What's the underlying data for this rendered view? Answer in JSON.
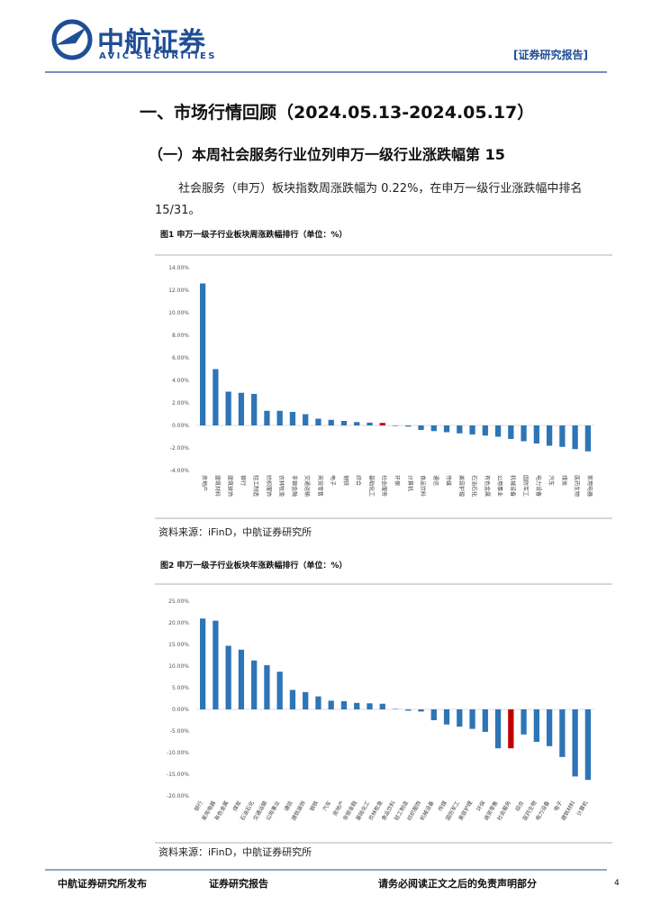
{
  "header": {
    "logo_cn": "中航证券",
    "logo_en": "AVIC SECURITIES",
    "tag": "[证券研究报告]"
  },
  "heading": "一、市场行情回顾（2024.05.13-2024.05.17）",
  "subheading": "（一）本周社会服务行业位列申万一级行业涨跌幅第 15",
  "paragraph": "社会服务（申万）板块指数周涨跌幅为 0.22%，在申万一级行业涨跌幅中排名 15/31。",
  "sources": [
    "资料来源：iFinD，中航证券研究所",
    "资料来源：iFinD，中航证券研究所"
  ],
  "footer": {
    "left": "中航证券研究所发布",
    "middle": "证券研究报告",
    "right": "请务必阅读正文之后的免责声明部分",
    "page": "4"
  },
  "chart_data": [
    {
      "type": "bar",
      "title": "图1 申万一级子行业板块周涨跌幅排行（单位：%）",
      "categories": [
        "房地产",
        "建筑材料",
        "建筑装饰",
        "银行",
        "轻工制造",
        "纺织服饰",
        "农林牧渔",
        "非银金融",
        "交通运输",
        "商贸零售",
        "电子",
        "钢铁",
        "综合",
        "基础化工",
        "社会服务",
        "环保",
        "计算机",
        "食品饮料",
        "通信",
        "传媒",
        "美容护理",
        "石油石化",
        "有色金属",
        "公用事业",
        "机械设备",
        "国防军工",
        "电力设备",
        "汽车",
        "煤炭",
        "医药生物",
        "家用电器"
      ],
      "values": [
        12.6,
        5.0,
        3.0,
        2.9,
        2.8,
        1.3,
        1.3,
        1.2,
        1.0,
        0.6,
        0.5,
        0.4,
        0.3,
        0.25,
        0.22,
        -0.05,
        -0.1,
        -0.4,
        -0.5,
        -0.6,
        -0.7,
        -0.8,
        -0.9,
        -1.0,
        -1.2,
        -1.4,
        -1.6,
        -1.8,
        -1.9,
        -2.1,
        -2.3
      ],
      "colors": [
        "#2e75b6",
        "#2e75b6",
        "#2e75b6",
        "#2e75b6",
        "#2e75b6",
        "#2e75b6",
        "#2e75b6",
        "#2e75b6",
        "#2e75b6",
        "#2e75b6",
        "#2e75b6",
        "#2e75b6",
        "#2e75b6",
        "#2e75b6",
        "#c00000",
        "#2e75b6",
        "#2e75b6",
        "#2e75b6",
        "#2e75b6",
        "#2e75b6",
        "#2e75b6",
        "#2e75b6",
        "#2e75b6",
        "#2e75b6",
        "#2e75b6",
        "#2e75b6",
        "#2e75b6",
        "#2e75b6",
        "#2e75b6",
        "#2e75b6",
        "#2e75b6"
      ],
      "ylim": [
        -4,
        14
      ],
      "yticks": [
        {
          "value": -4,
          "label": "-4.00%"
        },
        {
          "value": -2,
          "label": "-2.00%"
        },
        {
          "value": 0,
          "label": "0.00%"
        },
        {
          "value": 2,
          "label": "2.00%"
        },
        {
          "value": 4,
          "label": "4.00%"
        },
        {
          "value": 6,
          "label": "6.00%"
        },
        {
          "value": 8,
          "label": "8.00%"
        },
        {
          "value": 10,
          "label": "10.00%"
        },
        {
          "value": 12,
          "label": "12.00%"
        },
        {
          "value": 14,
          "label": "14.00%"
        }
      ]
    },
    {
      "type": "bar",
      "title": "图2 申万一级子行业板块年涨跌幅排行（单位：%）",
      "categories": [
        "银行",
        "家用电器",
        "有色金属",
        "煤炭",
        "石油石化",
        "交通运输",
        "公用事业",
        "通信",
        "建筑装饰",
        "钢铁",
        "汽车",
        "房地产",
        "非银金融",
        "基础化工",
        "农林牧渔",
        "食品饮料",
        "轻工制造",
        "纺织服饰",
        "机械设备",
        "传媒",
        "国防军工",
        "美容护理",
        "环保",
        "商贸零售",
        "社会服务",
        "综合",
        "医药生物",
        "电力设备",
        "电子",
        "建筑材料",
        "计算机"
      ],
      "values": [
        21.0,
        20.5,
        14.7,
        13.8,
        11.3,
        10.2,
        8.7,
        4.5,
        4.0,
        3.0,
        2.0,
        1.9,
        1.5,
        1.4,
        1.3,
        0.1,
        -0.3,
        -0.5,
        -2.5,
        -3.5,
        -4.0,
        -4.5,
        -5.2,
        -9.0,
        -9.0,
        -5.8,
        -7.5,
        -8.5,
        -11.0,
        -15.5,
        -16.3
      ],
      "colors": [
        "#2e75b6",
        "#2e75b6",
        "#2e75b6",
        "#2e75b6",
        "#2e75b6",
        "#2e75b6",
        "#2e75b6",
        "#2e75b6",
        "#2e75b6",
        "#2e75b6",
        "#2e75b6",
        "#2e75b6",
        "#2e75b6",
        "#2e75b6",
        "#2e75b6",
        "#2e75b6",
        "#2e75b6",
        "#2e75b6",
        "#2e75b6",
        "#2e75b6",
        "#2e75b6",
        "#2e75b6",
        "#2e75b6",
        "#2e75b6",
        "#c00000",
        "#2e75b6",
        "#2e75b6",
        "#2e75b6",
        "#2e75b6",
        "#2e75b6",
        "#2e75b6"
      ],
      "ylim": [
        -20,
        25
      ],
      "yticks": [
        {
          "value": -20,
          "label": "-20.00%"
        },
        {
          "value": -15,
          "label": "-15.00%"
        },
        {
          "value": -10,
          "label": "-10.00%"
        },
        {
          "value": -5,
          "label": "-5.00%"
        },
        {
          "value": 0,
          "label": "0.00%"
        },
        {
          "value": 5,
          "label": "5.00%"
        },
        {
          "value": 10,
          "label": "10.00%"
        },
        {
          "value": 15,
          "label": "15.00%"
        },
        {
          "value": 20,
          "label": "20.00%"
        },
        {
          "value": 25,
          "label": "25.00%"
        }
      ]
    }
  ]
}
